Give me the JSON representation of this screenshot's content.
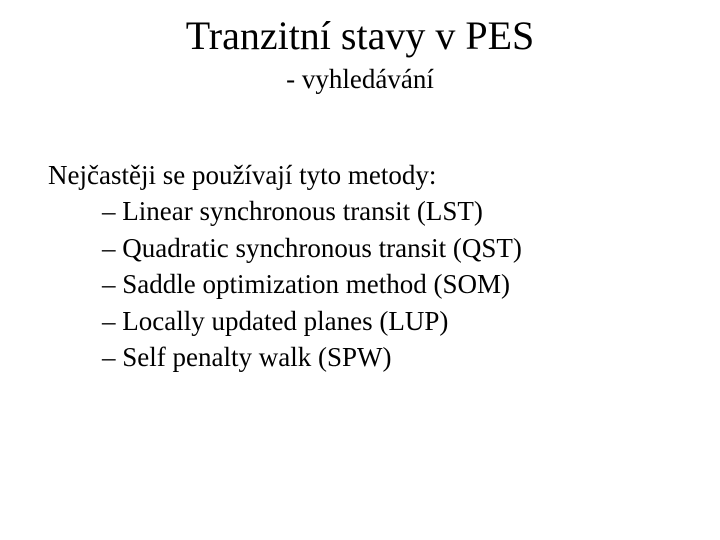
{
  "slide": {
    "title": "Tranzitní stavy v PES",
    "subtitle": "- vyhledávání",
    "intro": "Nejčastěji se používají tyto metody:",
    "bullets": [
      "– Linear synchronous transit (LST)",
      "– Quadratic synchronous transit (QST)",
      "– Saddle optimization method (SOM)",
      "– Locally updated planes (LUP)",
      "– Self penalty walk (SPW)"
    ],
    "colors": {
      "background": "#ffffff",
      "text": "#000000"
    },
    "fonts": {
      "family": "Times New Roman",
      "title_size_pt": 40,
      "subtitle_size_pt": 27,
      "body_size_pt": 27
    }
  }
}
